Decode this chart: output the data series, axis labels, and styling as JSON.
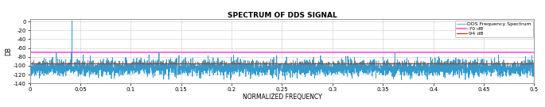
{
  "title": "SPECTRUM OF DDS SIGNAL",
  "xlabel": "NORMALIZED FREQUENCY",
  "ylabel": "DB",
  "xlim": [
    0,
    0.5
  ],
  "ylim": [
    -140,
    5
  ],
  "yticks": [
    0,
    -20,
    -40,
    -60,
    -80,
    -100,
    -120,
    -140
  ],
  "xticks": [
    0,
    0.05,
    0.1,
    0.15,
    0.2,
    0.25,
    0.3,
    0.35,
    0.4,
    0.45,
    0.5
  ],
  "xtick_labels": [
    "0",
    "0.05",
    "0.1",
    "0.15",
    "0.2",
    "0.25",
    "0.3",
    "0.35",
    "0.4",
    "0.45",
    "0.5"
  ],
  "ytick_labels": [
    "0",
    "-20",
    "-40",
    "-60",
    "-80",
    "-100",
    "-120",
    "-140"
  ],
  "hline_1_y": -70,
  "hline_1_color": "#ff44cc",
  "hline_1_label": "-70 dB",
  "hline_2_y": -94,
  "hline_2_color": "#cc3300",
  "hline_2_label": "-94 dB",
  "spectrum_color": "#3399cc",
  "spectrum_label": "DDS Frequency Spectrum",
  "noise_floor": -105,
  "noise_amplitude": 9,
  "spike_freq": 0.0417,
  "spike_amplitude": 1,
  "spike_base": -68,
  "background_color": "#ffffff",
  "grid_color": "#cccccc",
  "seed": 42,
  "num_points": 4000
}
